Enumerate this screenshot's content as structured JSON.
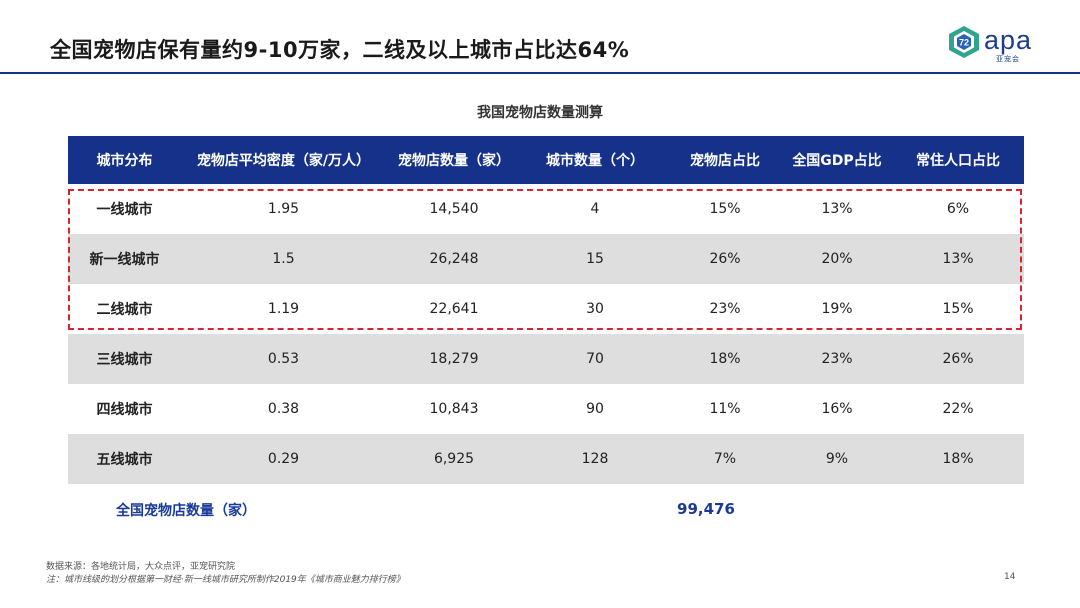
{
  "slide": {
    "title": "全国宠物店保有量约9-10万家，二线及以上城市占比达64%",
    "page_number": "14"
  },
  "logo": {
    "text": "apa",
    "subtext": "亚宠会",
    "mark_text": "72"
  },
  "table": {
    "title": "我国宠物店数量测算",
    "headers": [
      "城市分布",
      "宠物店平均密度（家/万人）",
      "宠物店数量（家）",
      "城市数量（个）",
      "宠物店占比",
      "全国GDP占比",
      "常住人口占比"
    ],
    "rows": [
      [
        "一线城市",
        "1.95",
        "14,540",
        "4",
        "15%",
        "13%",
        "6%"
      ],
      [
        "新一线城市",
        "1.5",
        "26,248",
        "15",
        "26%",
        "20%",
        "13%"
      ],
      [
        "二线城市",
        "1.19",
        "22,641",
        "30",
        "23%",
        "19%",
        "15%"
      ],
      [
        "三线城市",
        "0.53",
        "18,279",
        "70",
        "18%",
        "23%",
        "26%"
      ],
      [
        "四线城市",
        "0.38",
        "10,843",
        "90",
        "11%",
        "16%",
        "22%"
      ],
      [
        "五线城市",
        "0.29",
        "6,925",
        "128",
        "7%",
        "9%",
        "18%"
      ]
    ],
    "total_label": "全国宠物店数量（家）",
    "total_value": "99,476"
  },
  "footnotes": {
    "source": "数据来源：各地统计局，大众点评，亚宠研究院",
    "note": "注：城市线级的划分根据第一财经·新一线城市研究所制作2019年《城市商业魅力排行榜》"
  },
  "colors": {
    "header_bg": "#16318a",
    "highlight_border": "#d9232d",
    "row_shade": "#dedede",
    "total_text": "#1a3a9a"
  }
}
